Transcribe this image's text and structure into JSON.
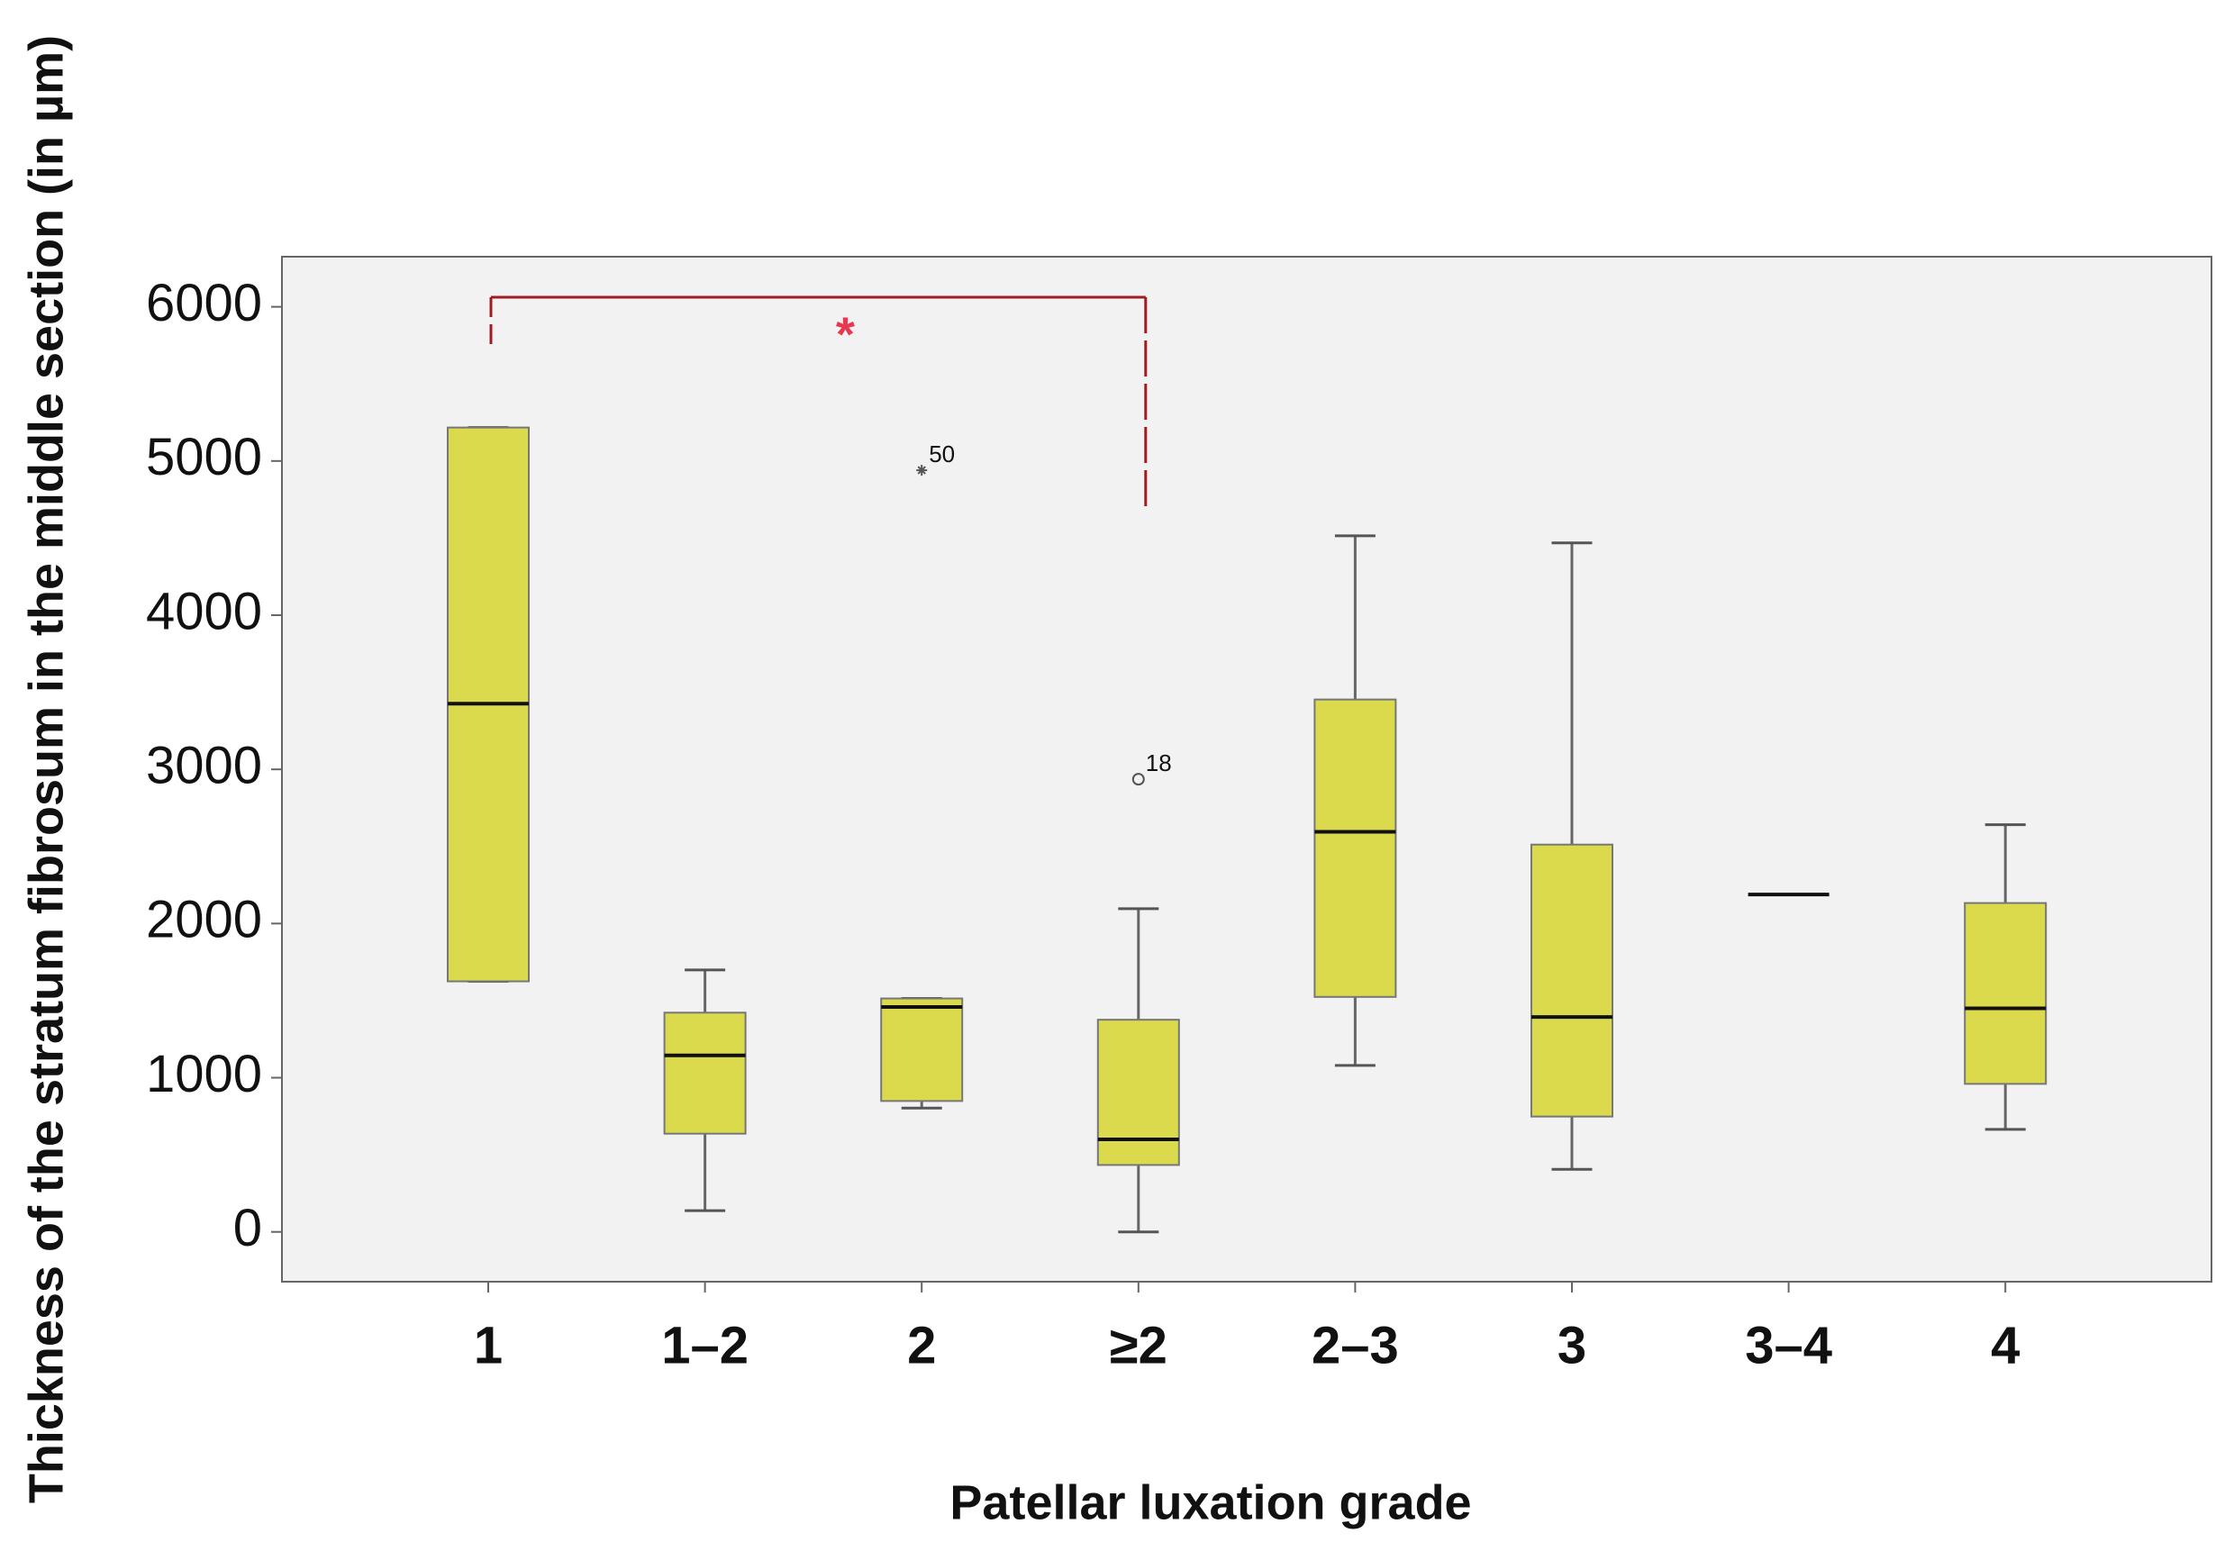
{
  "chart_data": {
    "type": "box",
    "x_label": "Patellar luxation grade",
    "y_label": "Thickness of the stratum fibrosum in the middle section (in µm)",
    "categories": [
      "1",
      "1–2",
      "2",
      "≥2",
      "2–3",
      "3",
      "3–4",
      "4"
    ],
    "min": [
      1625,
      138,
      803,
      0,
      1080,
      406,
      2188,
      665
    ],
    "q1": [
      1625,
      637,
      849,
      434,
      1524,
      748,
      2188,
      960
    ],
    "median": [
      3426,
      1145,
      1459,
      600,
      2595,
      1394,
      2188,
      1450
    ],
    "q3": [
      5217,
      1422,
      1514,
      1376,
      3453,
      2512,
      2188,
      2133
    ],
    "max": [
      5217,
      1699,
      1514,
      2096,
      4515,
      4469,
      2188,
      2641
    ],
    "color": "#dada4c",
    "outliers": [
      {
        "category": "2",
        "value": 4940,
        "label": "50",
        "shape": "star"
      },
      {
        "category": "≥2",
        "value": 2936,
        "label": "18",
        "shape": "circle"
      }
    ],
    "significance": {
      "from": "1",
      "to": "≥2",
      "label": "*",
      "color": "#a01c22"
    },
    "ylim": [
      -323,
      6325
    ],
    "yticks": [
      0,
      1000,
      2000,
      3000,
      4000,
      5000,
      6000
    ]
  }
}
